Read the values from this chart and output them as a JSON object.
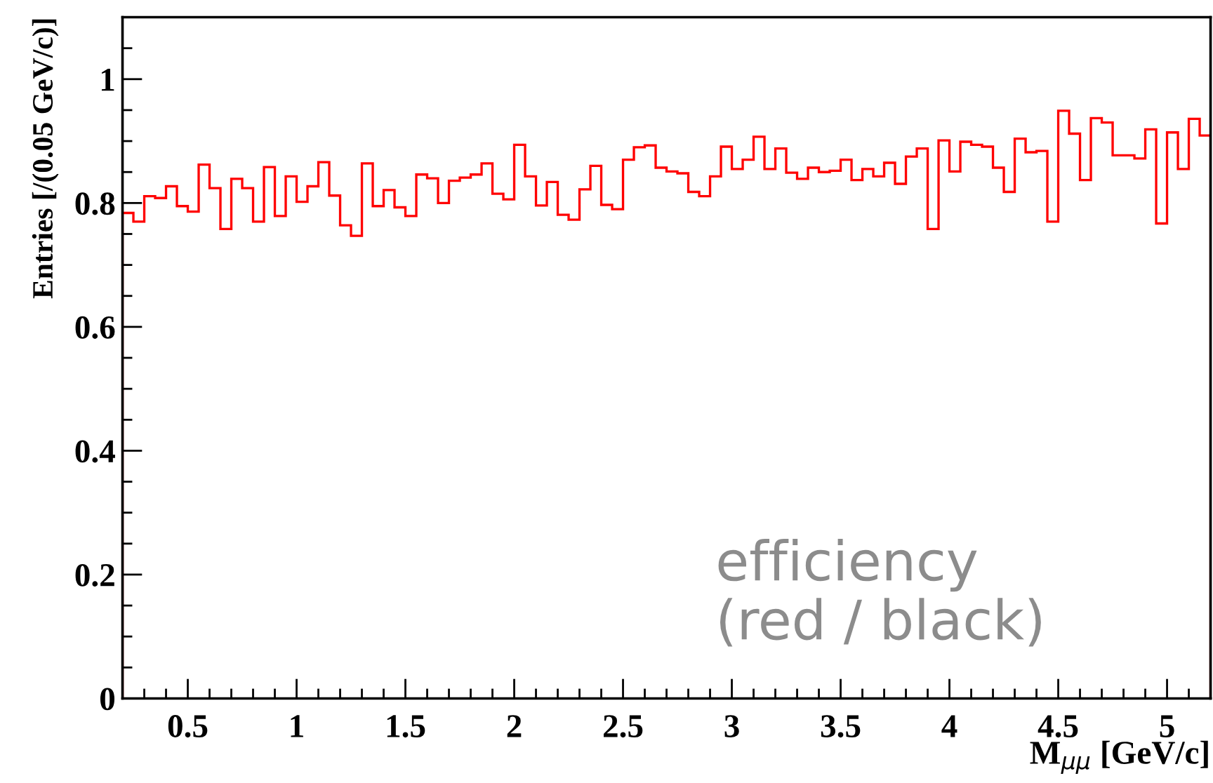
{
  "chart_data": {
    "type": "histogram",
    "xlabel": "M$_{μμ}$ [GeV/c]",
    "ylabel": "Entries [/(0.05 GeV/c)]",
    "annotations": [
      "efficiency\n(red / black)"
    ],
    "bins": [
      0.2,
      0.25,
      0.3,
      0.35,
      0.4,
      0.45,
      0.5,
      0.55,
      0.6,
      0.65,
      0.7,
      0.75,
      0.8,
      0.85,
      0.9,
      0.95,
      1.0,
      1.05,
      1.1,
      1.15,
      1.2,
      1.25,
      1.3,
      1.35,
      1.4,
      1.45,
      1.5,
      1.55,
      1.6,
      1.65,
      1.7,
      1.75,
      1.8,
      1.85,
      1.9,
      1.95,
      2.0,
      2.05,
      2.1,
      2.15,
      2.2,
      2.25,
      2.3,
      2.35,
      2.4,
      2.45,
      2.5,
      2.55,
      2.6,
      2.65,
      2.7,
      2.75,
      2.8,
      2.85,
      2.9,
      2.95,
      3.0,
      3.05,
      3.1,
      3.15,
      3.2,
      3.25,
      3.3,
      3.35,
      3.4,
      3.45,
      3.5,
      3.55,
      3.6,
      3.65,
      3.7,
      3.75,
      3.8,
      3.85,
      3.9,
      3.95,
      4.0,
      4.05,
      4.1,
      4.15,
      4.2,
      4.25,
      4.3,
      4.35,
      4.4,
      4.45,
      4.5,
      4.55,
      4.6,
      4.65,
      4.7,
      4.75,
      4.8,
      4.85,
      4.9,
      4.95,
      5.0,
      5.05,
      5.1,
      5.15,
      5.2
    ],
    "values": [
      0.784,
      0.77,
      0.811,
      0.808,
      0.827,
      0.795,
      0.786,
      0.862,
      0.824,
      0.758,
      0.839,
      0.824,
      0.77,
      0.858,
      0.779,
      0.843,
      0.802,
      0.827,
      0.866,
      0.812,
      0.764,
      0.747,
      0.864,
      0.795,
      0.821,
      0.793,
      0.779,
      0.846,
      0.84,
      0.8,
      0.836,
      0.841,
      0.846,
      0.864,
      0.815,
      0.806,
      0.894,
      0.843,
      0.796,
      0.834,
      0.781,
      0.773,
      0.822,
      0.86,
      0.797,
      0.79,
      0.87,
      0.89,
      0.893,
      0.857,
      0.851,
      0.848,
      0.818,
      0.811,
      0.843,
      0.891,
      0.855,
      0.87,
      0.907,
      0.855,
      0.888,
      0.849,
      0.839,
      0.857,
      0.85,
      0.852,
      0.87,
      0.837,
      0.855,
      0.843,
      0.865,
      0.831,
      0.875,
      0.888,
      0.758,
      0.901,
      0.851,
      0.899,
      0.894,
      0.891,
      0.857,
      0.818,
      0.904,
      0.882,
      0.884,
      0.77,
      0.949,
      0.912,
      0.837,
      0.937,
      0.93,
      0.877,
      0.877,
      0.872,
      0.919,
      0.767,
      0.914,
      0.855,
      0.936,
      0.909
    ],
    "color": "#ff0000",
    "xlim": [
      0.2,
      5.2
    ],
    "xticks": [
      0.5,
      1,
      1.5,
      2,
      2.5,
      3,
      3.5,
      4,
      4.5,
      5
    ],
    "ylim": [
      0,
      1.1
    ],
    "yticks": [
      0,
      0.2,
      0.4,
      0.6,
      0.8,
      1
    ],
    "grid": false
  }
}
